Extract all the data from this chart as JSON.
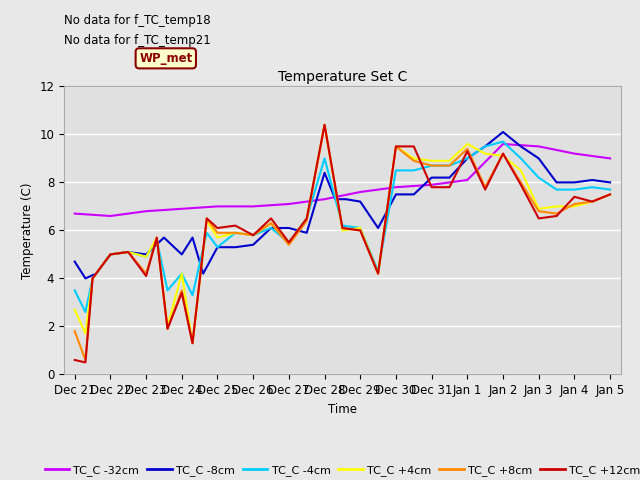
{
  "title": "Temperature Set C",
  "xlabel": "Time",
  "ylabel": "Temperature (C)",
  "ylim": [
    0,
    12
  ],
  "annotation_lines": [
    "No data for f_TC_temp18",
    "No data for f_TC_temp21"
  ],
  "wp_met_label": "WP_met",
  "background_color": "#e8e8e8",
  "plot_bg_color": "#e0e0e0",
  "grid_color": "#ffffff",
  "legend": [
    "TC_C -32cm",
    "TC_C -8cm",
    "TC_C -4cm",
    "TC_C +4cm",
    "TC_C +8cm",
    "TC_C +12cm"
  ],
  "colors": [
    "#cc00ff",
    "#0000cc",
    "#00ccff",
    "#ffff00",
    "#ff8800",
    "#cc0000"
  ],
  "series": {
    "TC_C_-32cm": {
      "x": [
        0,
        1,
        2,
        3,
        4,
        5,
        6,
        7,
        8,
        9,
        10,
        11,
        12,
        13,
        14,
        15
      ],
      "y": [
        6.7,
        6.6,
        6.8,
        6.9,
        7.0,
        7.0,
        7.1,
        7.3,
        7.6,
        7.8,
        7.9,
        8.1,
        9.6,
        9.5,
        9.2,
        9.0
      ],
      "color": "#cc00ff",
      "lw": 1.5
    },
    "TC_C_-8cm": {
      "x": [
        0,
        0.3,
        0.6,
        1,
        1.5,
        2,
        2.5,
        3,
        3.3,
        3.6,
        4,
        4.5,
        5,
        5.5,
        6,
        6.5,
        7,
        7.3,
        7.6,
        8,
        8.5,
        9,
        9.5,
        10,
        10.5,
        11,
        11.5,
        12,
        12.5,
        13,
        13.5,
        14,
        14.5,
        15
      ],
      "y": [
        4.7,
        4.0,
        4.2,
        5.0,
        5.1,
        5.0,
        5.7,
        5.0,
        5.7,
        4.2,
        5.3,
        5.3,
        5.4,
        6.1,
        6.1,
        5.9,
        8.4,
        7.3,
        7.3,
        7.2,
        6.1,
        7.5,
        7.5,
        8.2,
        8.2,
        9.0,
        9.5,
        10.1,
        9.5,
        9.0,
        8.0,
        8.0,
        8.1,
        8.0
      ],
      "color": "#0000cc",
      "lw": 1.5
    },
    "TC_C_-4cm": {
      "x": [
        0,
        0.3,
        0.5,
        1,
        1.5,
        2,
        2.3,
        2.6,
        3,
        3.3,
        3.7,
        4,
        4.5,
        5,
        5.5,
        6,
        6.5,
        7,
        7.5,
        8,
        8.5,
        9,
        9.5,
        10,
        10.5,
        11,
        11.5,
        12,
        12.5,
        13,
        13.5,
        14,
        14.5,
        15
      ],
      "y": [
        3.5,
        2.6,
        4.0,
        5.0,
        5.1,
        4.9,
        5.6,
        3.5,
        4.2,
        3.3,
        5.9,
        5.3,
        5.9,
        5.8,
        6.1,
        5.5,
        6.5,
        9.0,
        6.2,
        6.1,
        4.3,
        8.5,
        8.5,
        8.7,
        8.7,
        9.0,
        9.5,
        9.7,
        9.0,
        8.2,
        7.7,
        7.7,
        7.8,
        7.7
      ],
      "color": "#00ccff",
      "lw": 1.5
    },
    "TC_C_+4cm": {
      "x": [
        0,
        0.3,
        0.5,
        1,
        1.5,
        2,
        2.3,
        2.6,
        3,
        3.3,
        3.7,
        4,
        4.5,
        5,
        5.5,
        6,
        6.5,
        7,
        7.5,
        8,
        8.5,
        9,
        9.5,
        10,
        10.5,
        11,
        11.5,
        12,
        12.5,
        13,
        13.5,
        14,
        14.5,
        15
      ],
      "y": [
        2.7,
        1.7,
        4.0,
        5.0,
        5.1,
        4.9,
        5.7,
        2.0,
        4.2,
        1.3,
        6.4,
        5.7,
        5.9,
        5.8,
        6.3,
        5.5,
        6.5,
        10.4,
        6.0,
        6.1,
        4.2,
        9.5,
        9.0,
        8.9,
        8.9,
        9.6,
        9.2,
        9.1,
        8.5,
        6.9,
        7.0,
        7.0,
        7.2,
        7.5
      ],
      "color": "#ffff00",
      "lw": 1.5
    },
    "TC_C_+8cm": {
      "x": [
        0,
        0.3,
        0.5,
        1,
        1.5,
        2,
        2.3,
        2.6,
        3,
        3.3,
        3.7,
        4,
        4.5,
        5,
        5.5,
        6,
        6.5,
        7,
        7.5,
        8,
        8.5,
        9,
        9.5,
        10,
        10.5,
        11,
        11.5,
        12,
        12.5,
        13,
        13.5,
        14,
        14.5,
        15
      ],
      "y": [
        1.8,
        0.6,
        4.0,
        5.0,
        5.1,
        4.2,
        5.7,
        1.9,
        3.5,
        1.3,
        6.5,
        5.9,
        5.9,
        5.8,
        6.3,
        5.4,
        6.4,
        10.4,
        6.1,
        6.0,
        4.2,
        9.5,
        8.9,
        8.7,
        8.7,
        9.4,
        7.8,
        9.2,
        8.0,
        6.8,
        6.7,
        7.1,
        7.2,
        7.5
      ],
      "color": "#ff8800",
      "lw": 1.5
    },
    "TC_C_+12cm": {
      "x": [
        0,
        0.3,
        0.5,
        1,
        1.5,
        2,
        2.3,
        2.6,
        3,
        3.3,
        3.7,
        4,
        4.5,
        5,
        5.5,
        6,
        6.5,
        7,
        7.5,
        8,
        8.5,
        9,
        9.5,
        10,
        10.5,
        11,
        11.5,
        12,
        12.5,
        13,
        13.5,
        14,
        14.5,
        15
      ],
      "y": [
        0.6,
        0.5,
        4.0,
        5.0,
        5.1,
        4.1,
        5.7,
        1.9,
        3.4,
        1.3,
        6.5,
        6.1,
        6.2,
        5.8,
        6.5,
        5.5,
        6.5,
        10.4,
        6.1,
        6.0,
        4.2,
        9.5,
        9.5,
        7.8,
        7.8,
        9.3,
        7.7,
        9.2,
        7.9,
        6.5,
        6.6,
        7.4,
        7.2,
        7.5
      ],
      "color": "#cc0000",
      "lw": 1.5
    }
  },
  "xtick_positions": [
    0,
    1,
    2,
    3,
    4,
    5,
    6,
    7,
    8,
    9,
    10,
    11,
    12,
    13,
    14,
    15
  ],
  "xtick_labels": [
    "Dec 21",
    "Dec 22",
    "Dec 23",
    "Dec 24",
    "Dec 25",
    "Dec 26",
    "Dec 27",
    "Dec 28",
    "Dec 29",
    "Dec 30",
    "Dec 31",
    "Jan 1",
    "Jan 2",
    "Jan 3",
    "Jan 4",
    "Jan 5"
  ],
  "ytick_positions": [
    0,
    2,
    4,
    6,
    8,
    10,
    12
  ],
  "font_size": 8.5
}
